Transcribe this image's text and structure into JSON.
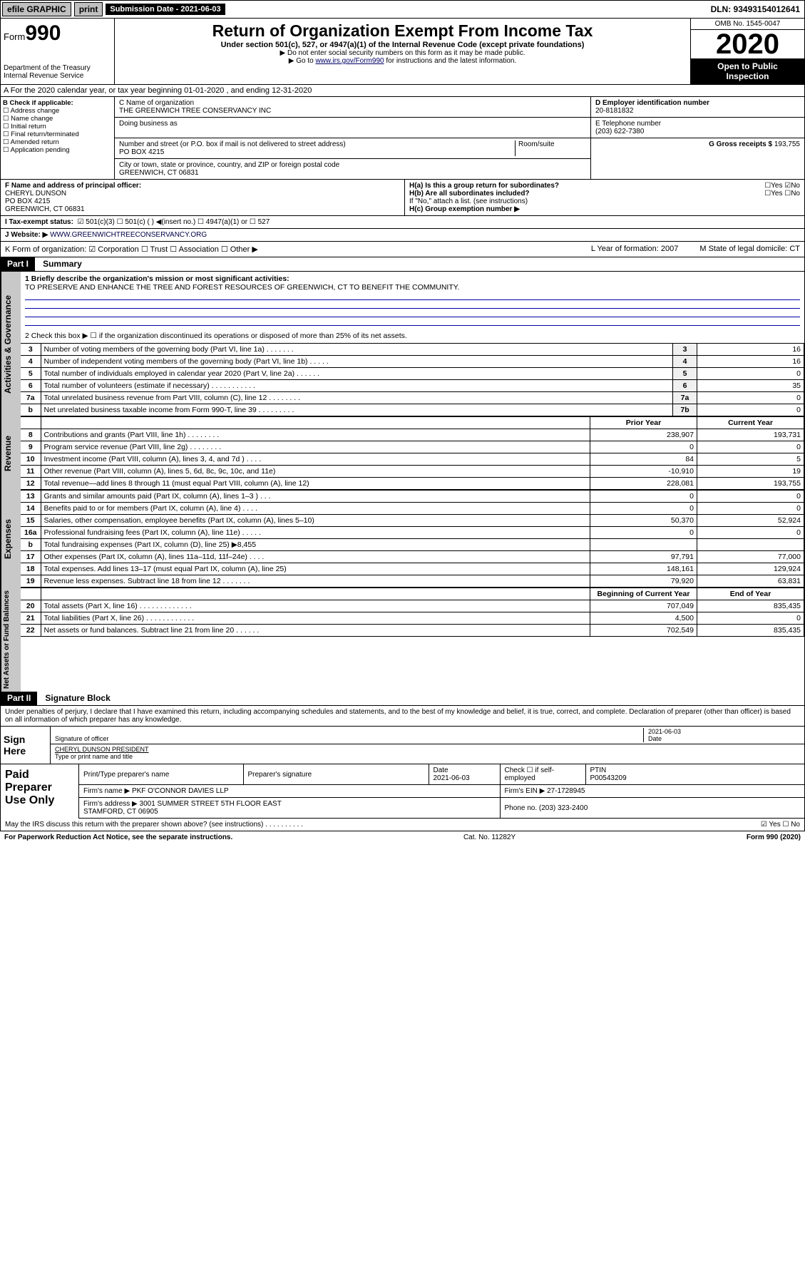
{
  "topbar": {
    "efile": "efile GRAPHIC",
    "print": "print",
    "subdate_label": "Submission Date - 2021-06-03",
    "dln": "DLN: 93493154012641"
  },
  "header": {
    "form": "Form",
    "form_no": "990",
    "dept": "Department of the Treasury\nInternal Revenue Service",
    "title": "Return of Organization Exempt From Income Tax",
    "sub": "Under section 501(c), 527, or 4947(a)(1) of the Internal Revenue Code (except private foundations)",
    "arrow1": "▶ Do not enter social security numbers on this form as it may be made public.",
    "arrow2_pre": "▶ Go to ",
    "arrow2_link": "www.irs.gov/Form990",
    "arrow2_post": " for instructions and the latest information.",
    "omb": "OMB No. 1545-0047",
    "year": "2020",
    "openpub1": "Open to Public",
    "openpub2": "Inspection"
  },
  "rowA": "A For the 2020 calendar year, or tax year beginning 01-01-2020    , and ending 12-31-2020",
  "boxB": {
    "title": "B Check if applicable:",
    "opts": [
      "Address change",
      "Name change",
      "Initial return",
      "Final return/terminated",
      "Amended return",
      "Application pending"
    ]
  },
  "boxC": {
    "name_label": "C Name of organization",
    "name": "THE GREENWICH TREE CONSERVANCY INC",
    "dba_label": "Doing business as",
    "addr_label": "Number and street (or P.O. box if mail is not delivered to street address)",
    "room_label": "Room/suite",
    "addr": "PO BOX 4215",
    "city_label": "City or town, state or province, country, and ZIP or foreign postal code",
    "city": "GREENWICH, CT  06831"
  },
  "boxD": {
    "label": "D Employer identification number",
    "val": "20-8181832"
  },
  "boxE": {
    "label": "E Telephone number",
    "val": "(203) 622-7380"
  },
  "boxG": {
    "label": "G Gross receipts $ ",
    "val": "193,755"
  },
  "boxF": {
    "label": "F Name and address of principal officer:",
    "val": "CHERYL DUNSON\nPO BOX 4215\nGREENWICH, CT  06831"
  },
  "boxH": {
    "a": "H(a)  Is this a group return for subordinates?",
    "a_ans": "☐Yes ☑No",
    "b": "H(b)  Are all subordinates included?",
    "b_ans": "☐Yes ☐No",
    "b_note": "If \"No,\" attach a list. (see instructions)",
    "c": "H(c)  Group exemption number ▶"
  },
  "rowI": {
    "label": "I    Tax-exempt status:",
    "opts": "☑ 501(c)(3)   ☐ 501(c) (  ) ◀(insert no.)   ☐ 4947(a)(1) or  ☐ 527"
  },
  "rowJ": {
    "label": "J   Website: ▶ ",
    "val": "WWW.GREENWICHTREECONSERVANCY.ORG"
  },
  "rowK": {
    "left": "K Form of organization:  ☑ Corporation  ☐ Trust  ☐ Association  ☐ Other ▶",
    "mid": "L Year of formation: 2007",
    "right": "M State of legal domicile: CT"
  },
  "part1": {
    "hdr": "Part I",
    "title": "Summary",
    "q1_label": "1  Briefly describe the organization's mission or most significant activities:",
    "q1_val": "TO PRESERVE AND ENHANCE THE TREE AND FOREST RESOURCES OF GREENWICH, CT TO BENEFIT THE COMMUNITY.",
    "q2": "2   Check this box ▶ ☐  if the organization discontinued its operations or disposed of more than 25% of its net assets.",
    "side_gov": "Activities & Governance",
    "side_rev": "Revenue",
    "side_exp": "Expenses",
    "side_net": "Net Assets or Fund Balances",
    "gov_rows": [
      {
        "n": "3",
        "lbl": "Number of voting members of the governing body (Part VI, line 1a)   .    .    .    .    .    .    .",
        "k": "3",
        "v": "16"
      },
      {
        "n": "4",
        "lbl": "Number of independent voting members of the governing body (Part VI, line 1b)   .    .    .    .    .",
        "k": "4",
        "v": "16"
      },
      {
        "n": "5",
        "lbl": "Total number of individuals employed in calendar year 2020 (Part V, line 2a)   .    .    .    .    .    .",
        "k": "5",
        "v": "0"
      },
      {
        "n": "6",
        "lbl": "Total number of volunteers (estimate if necessary)   .    .    .    .    .    .    .    .    .    .    .",
        "k": "6",
        "v": "35"
      },
      {
        "n": "7a",
        "lbl": "Total unrelated business revenue from Part VIII, column (C), line 12   .    .    .    .    .    .    .    .",
        "k": "7a",
        "v": "0"
      },
      {
        "n": "b",
        "lbl": "Net unrelated business taxable income from Form 990-T, line 39   .    .    .    .    .    .    .    .    .",
        "k": "7b",
        "v": "0"
      }
    ],
    "col_prior": "Prior Year",
    "col_curr": "Current Year",
    "col_boy": "Beginning of Current Year",
    "col_eoy": "End of Year",
    "rev_rows": [
      {
        "n": "8",
        "lbl": "Contributions and grants (Part VIII, line 1h)   .    .    .    .    .    .    .    .",
        "p": "238,907",
        "c": "193,731"
      },
      {
        "n": "9",
        "lbl": "Program service revenue (Part VIII, line 2g)   .    .    .    .    .    .    .    .",
        "p": "0",
        "c": "0"
      },
      {
        "n": "10",
        "lbl": "Investment income (Part VIII, column (A), lines 3, 4, and 7d )   .    .    .    .",
        "p": "84",
        "c": "5"
      },
      {
        "n": "11",
        "lbl": "Other revenue (Part VIII, column (A), lines 5, 6d, 8c, 9c, 10c, and 11e)",
        "p": "-10,910",
        "c": "19"
      },
      {
        "n": "12",
        "lbl": "Total revenue—add lines 8 through 11 (must equal Part VIII, column (A), line 12)",
        "p": "228,081",
        "c": "193,755"
      }
    ],
    "exp_rows": [
      {
        "n": "13",
        "lbl": "Grants and similar amounts paid (Part IX, column (A), lines 1–3 )   .    .    .",
        "p": "0",
        "c": "0"
      },
      {
        "n": "14",
        "lbl": "Benefits paid to or for members (Part IX, column (A), line 4)   .    .    .    .",
        "p": "0",
        "c": "0"
      },
      {
        "n": "15",
        "lbl": "Salaries, other compensation, employee benefits (Part IX, column (A), lines 5–10)",
        "p": "50,370",
        "c": "52,924"
      },
      {
        "n": "16a",
        "lbl": "Professional fundraising fees (Part IX, column (A), line 11e)   .    .    .    .    .",
        "p": "0",
        "c": "0"
      },
      {
        "n": "b",
        "lbl": "Total fundraising expenses (Part IX, column (D), line 25) ▶8,455",
        "p": "",
        "c": "",
        "gray": true
      },
      {
        "n": "17",
        "lbl": "Other expenses (Part IX, column (A), lines 11a–11d, 11f–24e)   .    .    .    .",
        "p": "97,791",
        "c": "77,000"
      },
      {
        "n": "18",
        "lbl": "Total expenses. Add lines 13–17 (must equal Part IX, column (A), line 25)",
        "p": "148,161",
        "c": "129,924"
      },
      {
        "n": "19",
        "lbl": "Revenue less expenses. Subtract line 18 from line 12  .    .    .    .    .    .    .",
        "p": "79,920",
        "c": "63,831"
      }
    ],
    "net_rows": [
      {
        "n": "20",
        "lbl": "Total assets (Part X, line 16)   .    .    .    .    .    .    .    .    .    .    .    .    .",
        "p": "707,049",
        "c": "835,435"
      },
      {
        "n": "21",
        "lbl": "Total liabilities (Part X, line 26)   .    .    .    .    .    .    .    .    .    .    .    .",
        "p": "4,500",
        "c": "0"
      },
      {
        "n": "22",
        "lbl": "Net assets or fund balances. Subtract line 21 from line 20   .    .    .    .    .    .",
        "p": "702,549",
        "c": "835,435"
      }
    ]
  },
  "part2": {
    "hdr": "Part II",
    "title": "Signature Block",
    "note": "Under penalties of perjury, I declare that I have examined this return, including accompanying schedules and statements, and to the best of my knowledge and belief, it is true, correct, and complete. Declaration of preparer (other than officer) is based on all information of which preparer has any knowledge.",
    "sign_here": "Sign Here",
    "sig_officer": "Signature of officer",
    "sig_date": "2021-06-03",
    "sig_date_lbl": "Date",
    "officer_name": "CHERYL DUNSON  PRESIDENT",
    "officer_name_lbl": "Type or print name and title",
    "paid": "Paid Preparer Use Only",
    "prep_name_lbl": "Print/Type preparer's name",
    "prep_sig_lbl": "Preparer's signature",
    "prep_date_lbl": "Date",
    "prep_date": "2021-06-03",
    "prep_check_lbl": "Check ☐ if self-employed",
    "ptin_lbl": "PTIN",
    "ptin": "P00543209",
    "firm_name_lbl": "Firm's name    ▶",
    "firm_name": "PKF O'CONNOR DAVIES LLP",
    "firm_ein_lbl": "Firm's EIN ▶",
    "firm_ein": "27-1728945",
    "firm_addr_lbl": "Firm's address ▶",
    "firm_addr": "3001 SUMMER STREET 5TH FLOOR EAST\nSTAMFORD, CT  06905",
    "phone_lbl": "Phone no.",
    "phone": "(203) 323-2400"
  },
  "footer": {
    "q": "May the IRS discuss this return with the preparer shown above? (see instructions)    .    .    .    .    .    .    .    .    .    .",
    "ans": "☑ Yes  ☐ No",
    "pra": "For Paperwork Reduction Act Notice, see the separate instructions.",
    "cat": "Cat. No. 11282Y",
    "form": "Form 990 (2020)"
  }
}
